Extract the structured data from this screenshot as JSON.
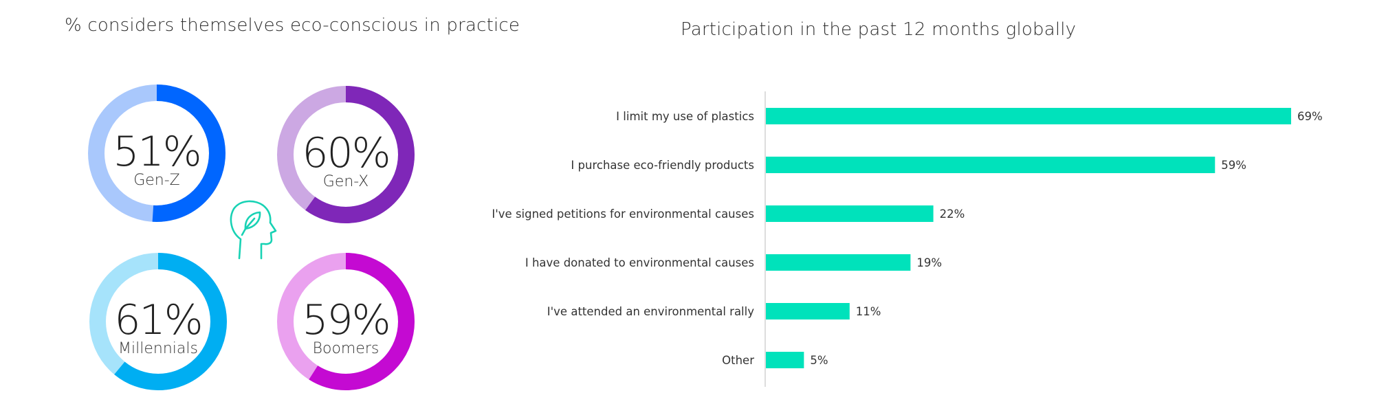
{
  "left_title": "% considers themselves eco-conscious in practice",
  "right_title": "Participation in the past 12 months globally",
  "icon": "head-with-leaf-icon",
  "chart_data": [
    {
      "type": "pie",
      "title": "% considers themselves eco-conscious in practice",
      "style": "donut",
      "items": [
        {
          "label": "Gen-Z",
          "value": 51,
          "display": "51%",
          "color": "#0066ff",
          "track_color": "#a9c8fc"
        },
        {
          "label": "Gen-X",
          "value": 60,
          "display": "60%",
          "color": "#7f27b8",
          "track_color": "#cca8e3"
        },
        {
          "label": "Millennials",
          "value": 61,
          "display": "61%",
          "color": "#00aef2",
          "track_color": "#a6e3fb"
        },
        {
          "label": "Boomers",
          "value": 59,
          "display": "59%",
          "color": "#c40ad2",
          "track_color": "#eaa1ef"
        }
      ]
    },
    {
      "type": "bar",
      "orientation": "horizontal",
      "title": "Participation in the past 12 months globally",
      "bar_color": "#00e2bb",
      "categories": [
        "I limit my use of plastics",
        "I purchase eco-friendly products",
        "I've signed petitions for environmental causes",
        "I have donated to environmental causes",
        "I've attended an environmental rally",
        "Other"
      ],
      "values": [
        69,
        59,
        22,
        19,
        11,
        5
      ],
      "value_labels": [
        "69%",
        "59%",
        "22%",
        "19%",
        "11%",
        "5%"
      ],
      "xlim": [
        0,
        69
      ],
      "grid": false,
      "legend": "none"
    }
  ]
}
